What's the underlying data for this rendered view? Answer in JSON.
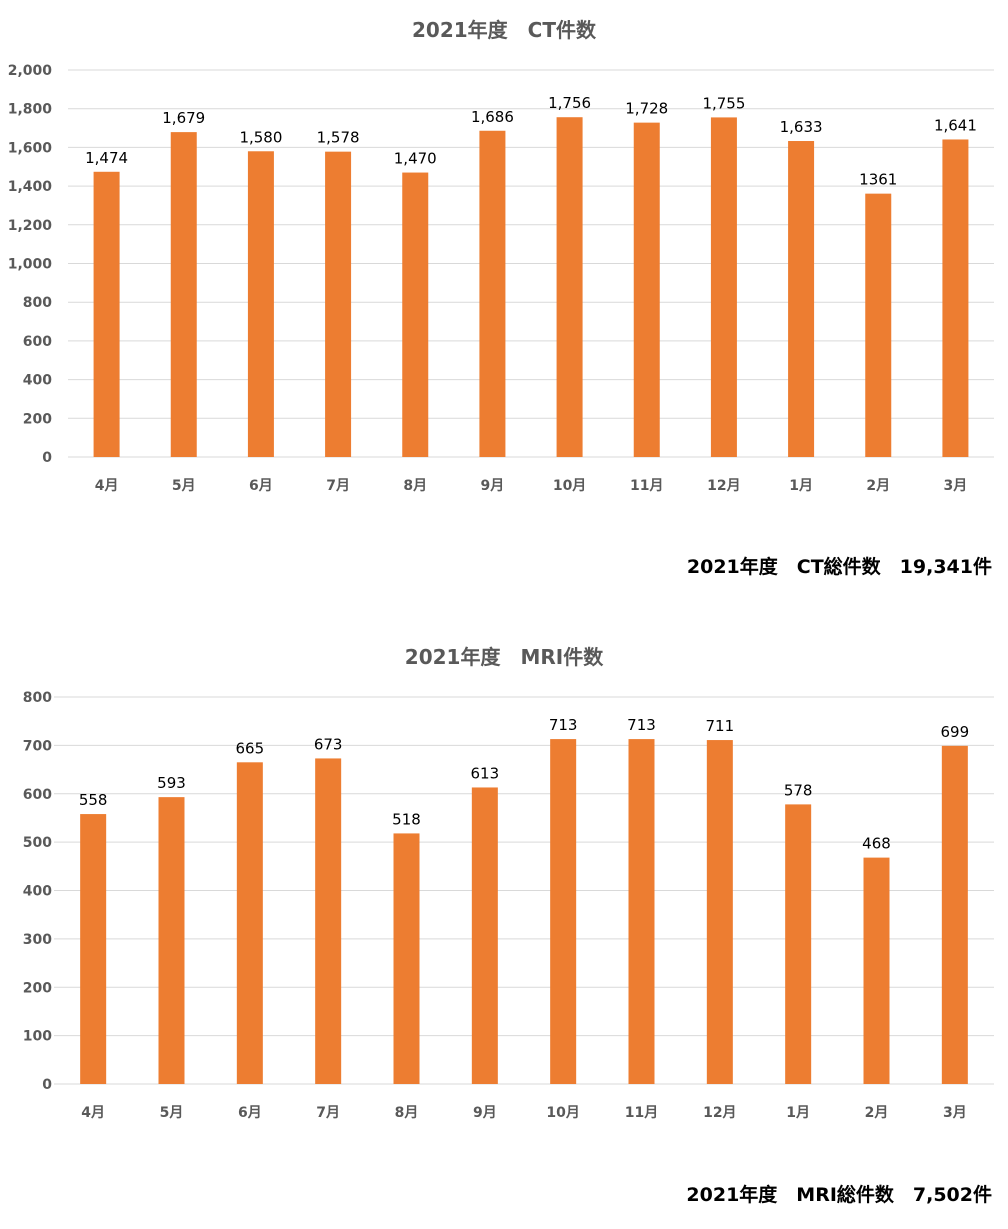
{
  "chart_data": [
    {
      "type": "bar",
      "title": "2021年度　CT件数",
      "categories": [
        "4月",
        "5月",
        "6月",
        "7月",
        "8月",
        "9月",
        "10月",
        "11月",
        "12月",
        "1月",
        "2月",
        "3月"
      ],
      "values": [
        1474,
        1679,
        1580,
        1578,
        1470,
        1686,
        1756,
        1728,
        1755,
        1633,
        1361,
        1641
      ],
      "data_labels": [
        "1,474",
        "1,679",
        "1,580",
        "1,578",
        "1,470",
        "1,686",
        "1,756",
        "1,728",
        "1,755",
        "1,633",
        "1361",
        "1,641"
      ],
      "yticks": [
        "0",
        "200",
        "400",
        "600",
        "800",
        "1,000",
        "1,200",
        "1,400",
        "1,600",
        "1,800",
        "2,000"
      ],
      "ylim": [
        0,
        2000
      ],
      "grid": true,
      "bar_color": "#ED7D31"
    },
    {
      "type": "bar",
      "title": "2021年度　MRI件数",
      "categories": [
        "4月",
        "5月",
        "6月",
        "7月",
        "8月",
        "9月",
        "10月",
        "11月",
        "12月",
        "1月",
        "2月",
        "3月"
      ],
      "values": [
        558,
        593,
        665,
        673,
        518,
        613,
        713,
        713,
        711,
        578,
        468,
        699
      ],
      "data_labels": [
        "558",
        "593",
        "665",
        "673",
        "518",
        "613",
        "713",
        "713",
        "711",
        "578",
        "468",
        "699"
      ],
      "yticks": [
        "0",
        "100",
        "200",
        "300",
        "400",
        "500",
        "600",
        "700",
        "800"
      ],
      "ylim": [
        0,
        800
      ],
      "grid": true,
      "bar_color": "#ED7D31"
    }
  ],
  "totals": {
    "ct": "2021年度　CT総件数　19,341件",
    "mri": "2021年度　MRI総件数　7,502件"
  }
}
